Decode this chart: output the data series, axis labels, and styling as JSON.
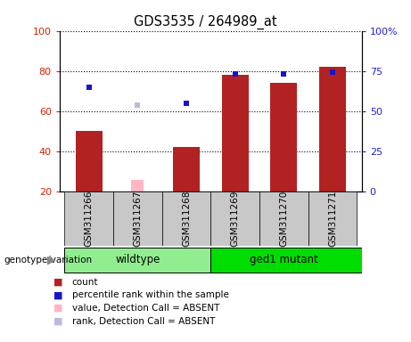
{
  "title": "GDS3535 / 264989_at",
  "samples": [
    "GSM311266",
    "GSM311267",
    "GSM311268",
    "GSM311269",
    "GSM311270",
    "GSM311271"
  ],
  "red_bar_values": [
    50,
    null,
    42,
    78,
    74,
    82
  ],
  "red_bar_absent": [
    null,
    26,
    null,
    null,
    null,
    null
  ],
  "blue_marker_values": [
    65,
    null,
    55,
    73,
    73,
    74
  ],
  "blue_marker_absent": [
    null,
    54,
    null,
    null,
    null,
    null
  ],
  "ylim_left": [
    20,
    100
  ],
  "ylim_right": [
    0,
    100
  ],
  "yticks_left": [
    20,
    40,
    60,
    80,
    100
  ],
  "yticks_right": [
    0,
    25,
    50,
    75,
    100
  ],
  "ytick_labels_left": [
    "20",
    "40",
    "60",
    "80",
    "100"
  ],
  "ytick_labels_right": [
    "0",
    "25",
    "50",
    "75",
    "100%"
  ],
  "bar_color_red": "#B22222",
  "bar_color_pink": "#FFB6C1",
  "marker_color_blue": "#1515CC",
  "marker_color_lavender": "#BBBBDD",
  "bar_bottom": 20,
  "bar_width": 0.55,
  "pink_bar_width": 0.25,
  "marker_size": 5,
  "legend_items": [
    {
      "label": "count",
      "color": "#B22222"
    },
    {
      "label": "percentile rank within the sample",
      "color": "#1515CC"
    },
    {
      "label": "value, Detection Call = ABSENT",
      "color": "#FFB6C1"
    },
    {
      "label": "rank, Detection Call = ABSENT",
      "color": "#BBBBDD"
    }
  ],
  "genotype_label": "genotype/variation",
  "sample_area_bg": "#C8C8C8",
  "group_wildtype_color": "#90EE90",
  "group_mutant_color": "#00DD00",
  "wildtype_label": "wildtype",
  "mutant_label": "ged1 mutant"
}
